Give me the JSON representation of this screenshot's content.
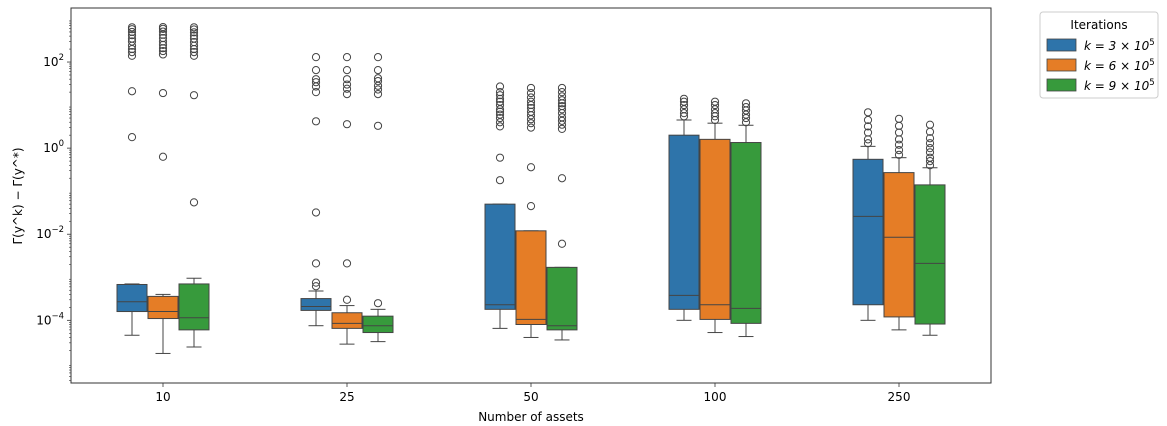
{
  "chart_data": {
    "type": "box",
    "xlabel": "Number of assets",
    "ylabel": "Γ(y^k) − Γ(y^*)",
    "yscale": "log",
    "ylim": [
      3.5e-06,
      1800
    ],
    "y_ticks": [
      0.0001,
      0.01,
      1,
      100
    ],
    "y_tick_labels": [
      {
        "base": "10",
        "exp": "−4"
      },
      {
        "base": "10",
        "exp": "−2"
      },
      {
        "base": "10",
        "exp": "0"
      },
      {
        "base": "10",
        "exp": "2"
      }
    ],
    "categories": [
      "10",
      "25",
      "50",
      "100",
      "250"
    ],
    "grid": false,
    "legend": {
      "title": "Iterations",
      "placement": "outside-top-right",
      "entries": [
        {
          "prefix": "k = 3 × 10",
          "sup": "5"
        },
        {
          "prefix": "k = 6 × 10",
          "sup": "5"
        },
        {
          "prefix": "k = 9 × 10",
          "sup": "5"
        }
      ]
    },
    "colors": [
      "#2e74aa",
      "#e57d26",
      "#379a3c"
    ],
    "series": [
      {
        "boxes": [
          {
            "whislo": 4.5e-05,
            "q1": 0.00016,
            "med": 0.00027,
            "q3": 0.00068,
            "whishi": 0.0007,
            "fliers": [
              1.8,
              21,
              140,
              170,
              200,
              240,
              300,
              350,
              420,
              500,
              580,
              640
            ]
          },
          {
            "whislo": 7.5e-05,
            "q1": 0.00017,
            "med": 0.00021,
            "q3": 0.00032,
            "whishi": 0.00048,
            "fliers": [
              0.00062,
              0.00075,
              0.0021,
              0.032,
              4.2,
              20,
              27,
              34,
              40,
              65,
              130
            ]
          },
          {
            "whislo": 6.5e-05,
            "q1": 0.00018,
            "med": 0.00023,
            "q3": 0.05,
            "whishi": 0.05,
            "fliers": [
              0.18,
              0.6,
              3.2,
              4,
              5,
              6,
              7,
              8,
              10,
              12,
              14,
              17,
              20,
              27
            ]
          },
          {
            "whislo": 0.0001,
            "q1": 0.00018,
            "med": 0.00038,
            "q3": 2.0,
            "whishi": 4.5,
            "fliers": [
              5.5,
              6.5,
              8,
              10,
              12,
              14
            ]
          },
          {
            "whislo": 0.0001,
            "q1": 0.00023,
            "med": 0.026,
            "q3": 0.55,
            "whishi": 1.1,
            "fliers": [
              1.3,
              1.6,
              2.3,
              3.2,
              4.5,
              6.8
            ]
          }
        ]
      },
      {
        "boxes": [
          {
            "whislo": 1.7e-05,
            "q1": 0.00011,
            "med": 0.00016,
            "q3": 0.00036,
            "whishi": 0.0004,
            "fliers": [
              0.63,
              19,
              150,
              180,
              210,
              250,
              300,
              360,
              430,
              510,
              590,
              650
            ]
          },
          {
            "whislo": 2.8e-05,
            "q1": 6.5e-05,
            "med": 8.5e-05,
            "q3": 0.00015,
            "whishi": 0.00022,
            "fliers": [
              0.0003,
              0.0021,
              3.6,
              18,
              24,
              30,
              40,
              65,
              130
            ]
          },
          {
            "whislo": 4e-05,
            "q1": 8e-05,
            "med": 0.000105,
            "q3": 0.012,
            "whishi": 0.012,
            "fliers": [
              0.045,
              0.36,
              3,
              3.8,
              4.7,
              5.8,
              7,
              8.5,
              10,
              12,
              15,
              19,
              25
            ]
          },
          {
            "whislo": 5.2e-05,
            "q1": 0.000105,
            "med": 0.00023,
            "q3": 1.6,
            "whishi": 3.8,
            "fliers": [
              4.5,
              5.5,
              6.5,
              8,
              10,
              12
            ]
          },
          {
            "whislo": 6e-05,
            "q1": 0.00012,
            "med": 0.0085,
            "q3": 0.27,
            "whishi": 0.6,
            "fliers": [
              0.7,
              0.9,
              1.2,
              1.6,
              2.3,
              3.3,
              4.8
            ]
          }
        ]
      },
      {
        "boxes": [
          {
            "whislo": 2.4e-05,
            "q1": 6e-05,
            "med": 0.000115,
            "q3": 0.0007,
            "whishi": 0.00095,
            "fliers": [
              0.055,
              17,
              140,
              170,
              200,
              240,
              290,
              350,
              410,
              490,
              570,
              640
            ]
          },
          {
            "whislo": 3.2e-05,
            "q1": 5.2e-05,
            "med": 7.5e-05,
            "q3": 0.000125,
            "whishi": 0.00018,
            "fliers": [
              0.00025,
              3.3,
              18,
              23,
              28,
              36,
              42,
              65,
              130
            ]
          },
          {
            "whislo": 3.5e-05,
            "q1": 6e-05,
            "med": 7.5e-05,
            "q3": 0.0017,
            "whishi": 0.0017,
            "fliers": [
              0.006,
              0.2,
              2.8,
              3.5,
              4.3,
              5.2,
              6.5,
              8,
              9.5,
              11,
              13,
              16,
              20,
              25
            ]
          },
          {
            "whislo": 4.2e-05,
            "q1": 8.5e-05,
            "med": 0.00019,
            "q3": 1.35,
            "whishi": 3.4,
            "fliers": [
              4,
              5,
              6,
              7.5,
              9,
              11
            ]
          },
          {
            "whislo": 4.5e-05,
            "q1": 8.2e-05,
            "med": 0.0021,
            "q3": 0.14,
            "whishi": 0.35,
            "fliers": [
              0.4,
              0.5,
              0.6,
              0.8,
              1.0,
              1.3,
              1.7,
              2.4,
              3.5
            ]
          }
        ]
      }
    ]
  }
}
